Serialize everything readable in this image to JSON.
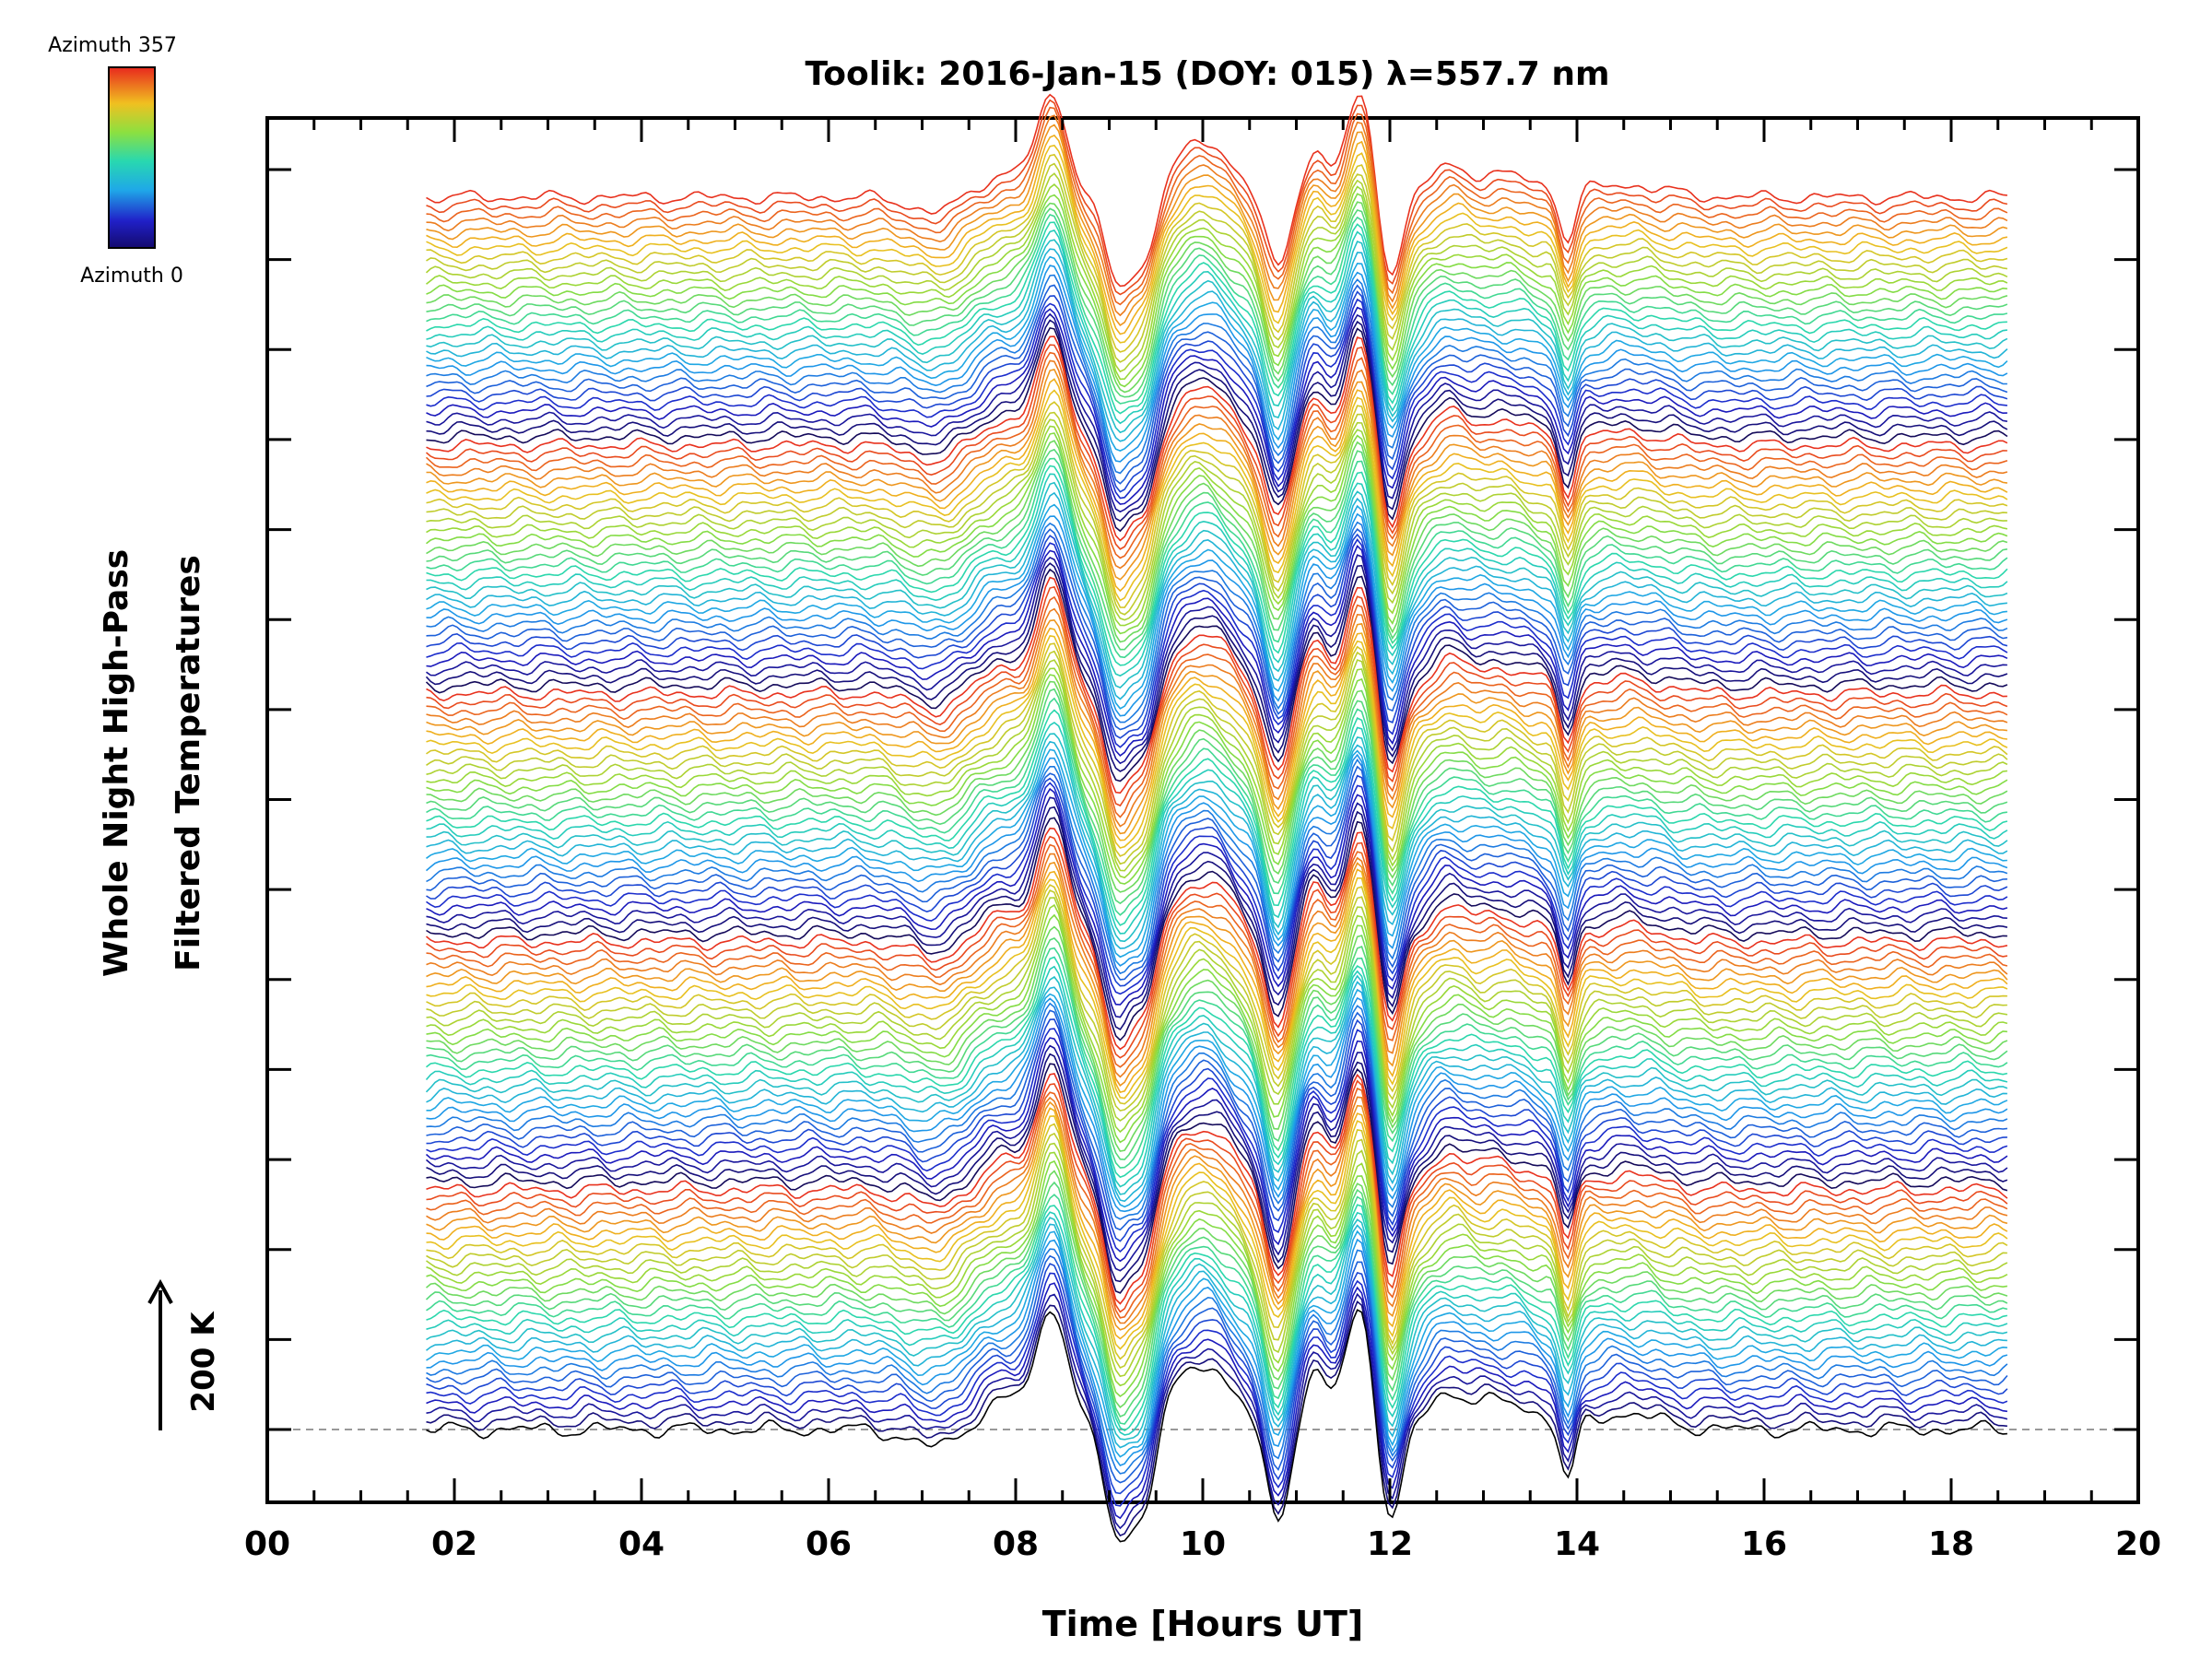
{
  "chart_data": {
    "type": "line",
    "title": "Toolik: 2016-Jan-15 (DOY: 015) λ=557.7 nm",
    "xlabel": "Time [Hours UT]",
    "ylabel_line1": "Whole Night High-Pass",
    "ylabel_line2": "Filtered Temperatures",
    "scale_bar_label": "200 K",
    "xlim": [
      0,
      20
    ],
    "x_tick_labels": [
      "00",
      "02",
      "04",
      "06",
      "08",
      "10",
      "12",
      "14",
      "16",
      "18",
      "20"
    ],
    "x_tick_values": [
      0,
      2,
      4,
      6,
      8,
      10,
      12,
      14,
      16,
      18,
      20
    ],
    "data_time_range_hours": [
      1.7,
      18.6
    ],
    "series_count": 145,
    "color_cycle_period": 29,
    "colorbar": {
      "top_label": "Azimuth 357",
      "bottom_label": "Azimuth 0",
      "azimuth_range_deg": [
        0,
        357
      ],
      "colormap": "rainbow"
    },
    "zero_line_style": "dashed",
    "features": [
      {
        "t": 8.4,
        "kind": "peak"
      },
      {
        "t": 9.1,
        "kind": "trough"
      },
      {
        "t": 9.35,
        "kind": "trough"
      },
      {
        "t": 10.0,
        "kind": "peak"
      },
      {
        "t": 10.8,
        "kind": "trough"
      },
      {
        "t": 11.2,
        "kind": "peak"
      },
      {
        "t": 11.7,
        "kind": "peak"
      },
      {
        "t": 12.0,
        "kind": "trough"
      },
      {
        "t": 13.9,
        "kind": "trough"
      }
    ]
  },
  "colors": {
    "background": "#ffffff",
    "axis": "#000000",
    "zero_line": "#999999"
  }
}
